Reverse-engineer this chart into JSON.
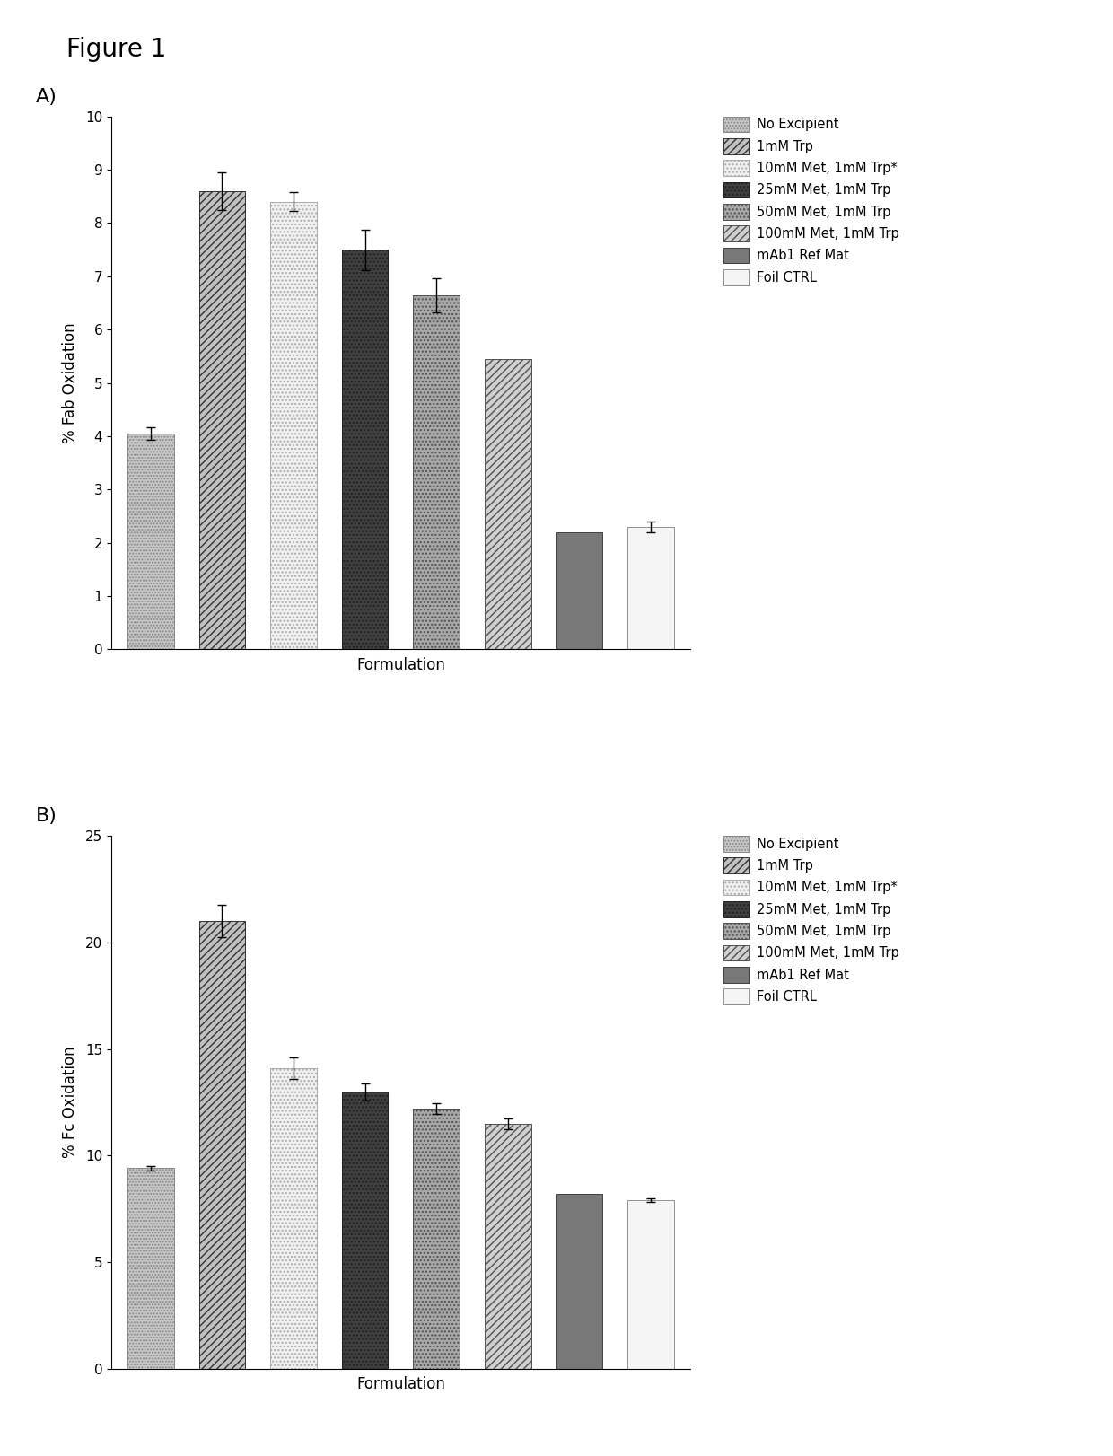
{
  "figure_title": "Figure 1",
  "panel_A": {
    "label": "A)",
    "ylabel": "% Fab Oxidation",
    "xlabel": "Formulation",
    "ylim": [
      0,
      10
    ],
    "yticks": [
      0,
      1,
      2,
      3,
      4,
      5,
      6,
      7,
      8,
      9,
      10
    ],
    "values": [
      4.05,
      8.6,
      8.4,
      7.5,
      6.65,
      5.45,
      2.2,
      2.3
    ],
    "errors": [
      0.12,
      0.35,
      0.18,
      0.38,
      0.32,
      0.0,
      0.0,
      0.1
    ]
  },
  "panel_B": {
    "label": "B)",
    "ylabel": "% Fc Oxidation",
    "xlabel": "Formulation",
    "ylim": [
      0,
      25
    ],
    "yticks": [
      0,
      5,
      10,
      15,
      20,
      25
    ],
    "values": [
      9.4,
      21.0,
      14.1,
      13.0,
      12.2,
      11.5,
      8.2,
      7.9
    ],
    "errors": [
      0.12,
      0.75,
      0.5,
      0.4,
      0.25,
      0.25,
      0.0,
      0.1
    ]
  },
  "legend_labels": [
    "No Excipient",
    "1mM Trp",
    "10mM Met, 1mM Trp*",
    "25mM Met, 1mM Trp",
    "50mM Met, 1mM Trp",
    "100mM Met, 1mM Trp",
    "mAb1 Ref Mat",
    "Foil CTRL"
  ],
  "bar_configs": [
    {
      "fc": "#c8c8c8",
      "hatch": "....",
      "ec": "#888888"
    },
    {
      "fc": "#d0d0d0",
      "hatch": "////",
      "ec": "#303030"
    },
    {
      "fc": "#f0f0f0",
      "hatch": "....",
      "ec": "#aaaaaa"
    },
    {
      "fc": "#505050",
      "hatch": "....",
      "ec": "#202020"
    },
    {
      "fc": "#b0b0b0",
      "hatch": "....",
      "ec": "#606060"
    },
    {
      "fc": "#d8d8d8",
      "hatch": "////",
      "ec": "#505050"
    },
    {
      "fc": "#808080",
      "hatch": "",
      "ec": "#404040"
    },
    {
      "fc": "#f8f8f8",
      "hatch": "",
      "ec": "#909090"
    }
  ],
  "bar_width": 0.65,
  "figsize": [
    12.4,
    16.22
  ],
  "dpi": 100,
  "background_color": "#ffffff"
}
